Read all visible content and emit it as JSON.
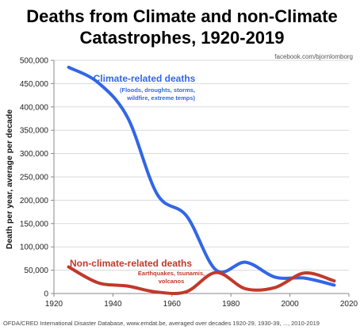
{
  "chart_data": {
    "type": "line",
    "title_line1": "Deaths from Climate and non-Climate",
    "title_line2": "Catastrophes, 1920-2019",
    "credit": "facebook.com/bjornlomborg",
    "ylabel": "Death per year, average per decade",
    "source": "OFDA/CRED International Disaster Database, www.emdat.be, averaged over decades 1920-29, 1930-39, ..., 2010-2019",
    "xlim": [
      1920,
      2020
    ],
    "ylim": [
      0,
      500000
    ],
    "x_ticks": [
      1920,
      1940,
      1960,
      1980,
      2000,
      2020
    ],
    "y_ticks": [
      0,
      50000,
      100000,
      150000,
      200000,
      250000,
      300000,
      350000,
      400000,
      450000,
      500000
    ],
    "y_tick_labels": [
      "0",
      "50,000",
      "100,000",
      "150,000",
      "200,000",
      "250,000",
      "300,000",
      "350,000",
      "400,000",
      "450,000",
      "500,000"
    ],
    "x": [
      1925,
      1935,
      1945,
      1955,
      1965,
      1975,
      1985,
      1995,
      2005,
      2015
    ],
    "series": [
      {
        "name": "Climate-related deaths",
        "note_lines": [
          "(Floods, droughts, storms,",
          "wildfire, extreme temps)"
        ],
        "color": "#3366e6",
        "values": [
          485000,
          452000,
          377000,
          213000,
          166000,
          50000,
          67000,
          35000,
          33000,
          18000
        ]
      },
      {
        "name": "Non-climate-related deaths",
        "note_lines": [
          "Earthquakes, tsunamis,",
          "volcanos"
        ],
        "color": "#c0392b",
        "values": [
          57000,
          23000,
          16000,
          3000,
          4000,
          45000,
          10000,
          13000,
          44000,
          27000
        ]
      }
    ]
  }
}
